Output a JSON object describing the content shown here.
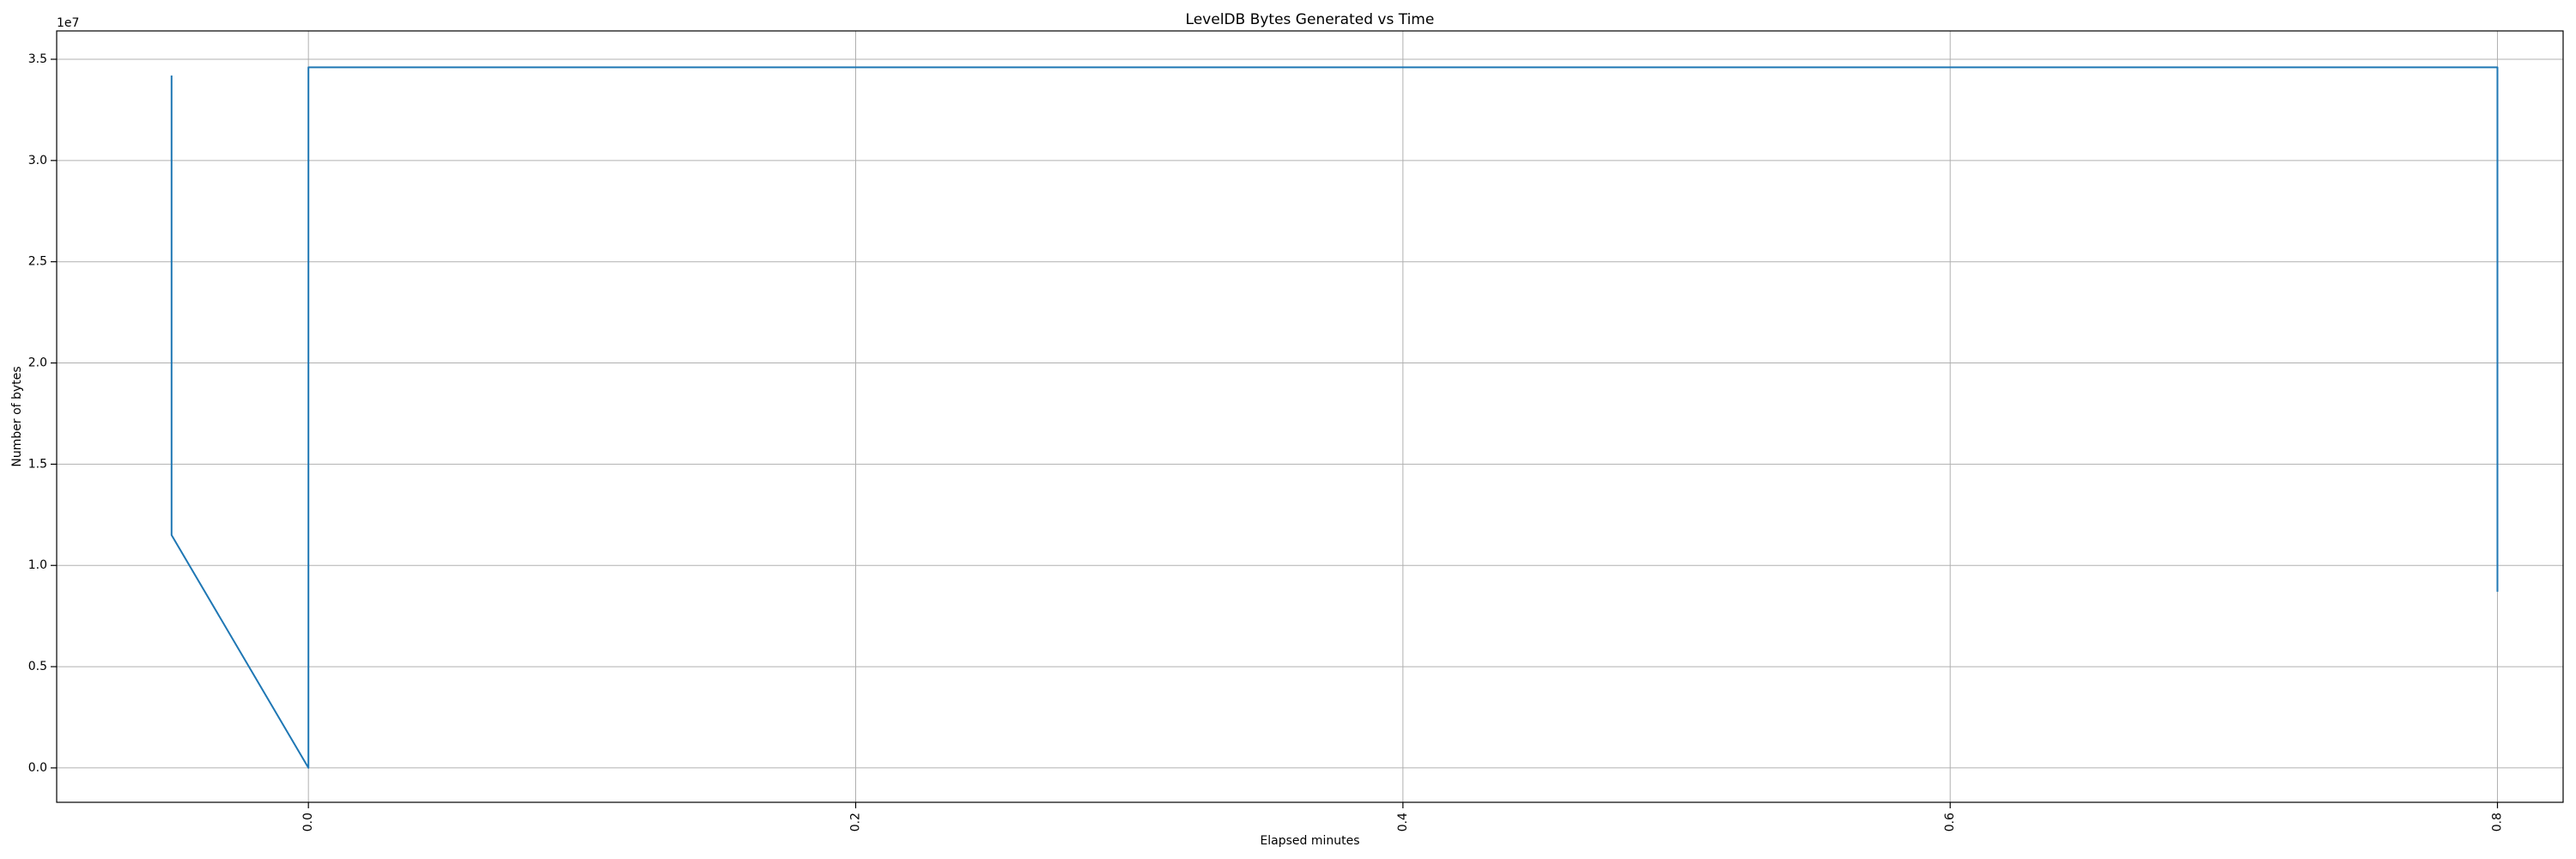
{
  "chart_data": {
    "type": "line",
    "title": "LevelDB Bytes Generated vs Time",
    "xlabel": "Elapsed minutes",
    "ylabel": "Number of bytes",
    "y_offset_label": "1e7",
    "xlim": [
      -0.092,
      0.824
    ],
    "ylim": [
      -0.17,
      3.64
    ],
    "y_scale_note": "values in units of 1e7 bytes",
    "grid": true,
    "x_ticks": [
      0.0,
      0.2,
      0.4,
      0.6,
      0.8
    ],
    "x_tick_labels": [
      "0.0",
      "0.2",
      "0.4",
      "0.6",
      "0.8"
    ],
    "y_ticks": [
      0.0,
      0.5,
      1.0,
      1.5,
      2.0,
      2.5,
      3.0,
      3.5
    ],
    "y_tick_labels": [
      "0.0",
      "0.5",
      "1.0",
      "1.5",
      "2.0",
      "2.5",
      "3.0",
      "3.5"
    ],
    "series": [
      {
        "color": "#1f77b4",
        "x": [
          -0.05,
          -0.05,
          0.0,
          0.0,
          0.8,
          0.8
        ],
        "y": [
          3.42,
          1.15,
          0.0,
          3.46,
          3.46,
          0.87
        ]
      }
    ]
  }
}
